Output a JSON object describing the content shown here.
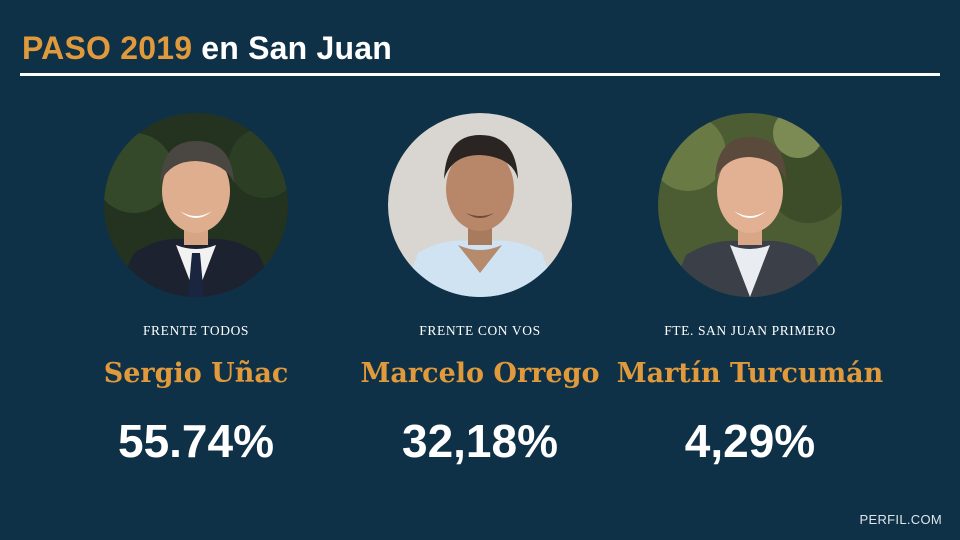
{
  "header": {
    "title_accent": "PASO 2019",
    "title_rest": "en San Juan"
  },
  "candidates": [
    {
      "party": "FRENTE TODOS",
      "name": "Sergio Uñac",
      "percentage": "55.74%"
    },
    {
      "party": "FRENTE CON VOS",
      "name": "Marcelo Orrego",
      "percentage": "32,18%"
    },
    {
      "party": "FTE. SAN JUAN PRIMERO",
      "name": "Martín Turcumán",
      "percentage": "4,29%"
    }
  ],
  "footer": {
    "source": "PERFIL.COM"
  },
  "colors": {
    "background": "#0e3147",
    "accent": "#e09a3b",
    "text": "#ffffff"
  }
}
